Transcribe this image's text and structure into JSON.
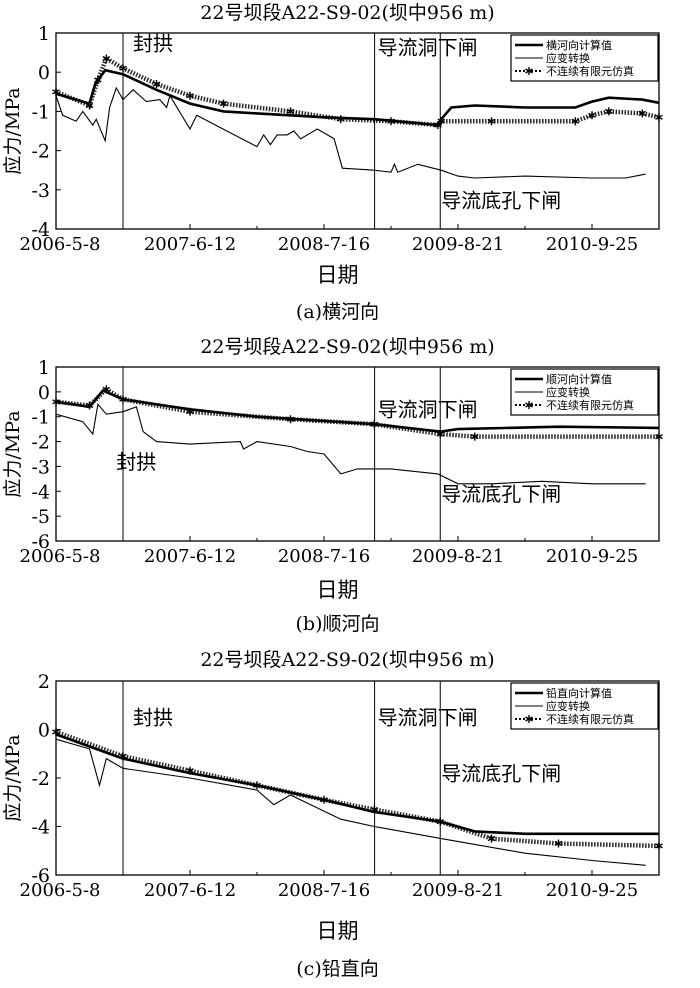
{
  "chart_data": [
    {
      "type": "line",
      "title": "22号坝段A22-S9-02(坝中956 m)",
      "caption": "(a)横河向",
      "xlabel": "日期",
      "ylabel": "应力/MPa",
      "x_unit": "days since 2006-5-8",
      "xlim": [
        0,
        1800
      ],
      "ylim": [
        -4,
        1
      ],
      "yticks": [
        1,
        0,
        -1,
        -2,
        -3,
        -4
      ],
      "xticks": [
        {
          "x": 0,
          "label": "2006-5-8"
        },
        {
          "x": 400,
          "label": "2007-6-12"
        },
        {
          "x": 800,
          "label": "2008-7-16"
        },
        {
          "x": 1200,
          "label": "2009-8-21"
        },
        {
          "x": 1600,
          "label": "2010-9-25"
        }
      ],
      "legend": [
        "横河向计算值",
        "应变转换",
        "不连续有限元仿真"
      ],
      "legend_position": "top-right",
      "events": [
        {
          "x": 200,
          "label": "封拱",
          "tx": 230,
          "ty": 0.55
        },
        {
          "x": 951,
          "label": "导流洞下闸",
          "tx": 960,
          "ty": 0.45
        },
        {
          "x": 1147,
          "label": "导流底孔下闸",
          "tx": 1150,
          "ty": -3.45
        }
      ],
      "series": [
        {
          "name": "横河向计算值",
          "style": "thick",
          "points": [
            [
              0,
              -0.55
            ],
            [
              100,
              -0.8
            ],
            [
              117,
              -0.3
            ],
            [
              147,
              0.05
            ],
            [
              200,
              -0.05
            ],
            [
              300,
              -0.45
            ],
            [
              400,
              -0.8
            ],
            [
              500,
              -1.0
            ],
            [
              600,
              -1.05
            ],
            [
              700,
              -1.1
            ],
            [
              800,
              -1.15
            ],
            [
              950,
              -1.2
            ],
            [
              1140,
              -1.35
            ],
            [
              1150,
              -1.2
            ],
            [
              1180,
              -0.9
            ],
            [
              1250,
              -0.85
            ],
            [
              1400,
              -0.9
            ],
            [
              1550,
              -0.9
            ],
            [
              1600,
              -0.75
            ],
            [
              1650,
              -0.65
            ],
            [
              1750,
              -0.7
            ],
            [
              1800,
              -0.78
            ]
          ]
        },
        {
          "name": "应变转换",
          "style": "thin",
          "points": [
            [
              0,
              -0.6
            ],
            [
              20,
              -1.1
            ],
            [
              60,
              -1.25
            ],
            [
              80,
              -1.0
            ],
            [
              110,
              -1.35
            ],
            [
              120,
              -1.2
            ],
            [
              147,
              -1.75
            ],
            [
              160,
              -0.9
            ],
            [
              180,
              -0.4
            ],
            [
              200,
              -0.7
            ],
            [
              230,
              -0.45
            ],
            [
              270,
              -0.75
            ],
            [
              310,
              -0.7
            ],
            [
              330,
              -0.9
            ],
            [
              340,
              -0.6
            ],
            [
              400,
              -1.45
            ],
            [
              420,
              -1.1
            ],
            [
              600,
              -1.9
            ],
            [
              620,
              -1.6
            ],
            [
              640,
              -1.85
            ],
            [
              660,
              -1.6
            ],
            [
              690,
              -1.6
            ],
            [
              710,
              -1.5
            ],
            [
              730,
              -1.7
            ],
            [
              780,
              -1.45
            ],
            [
              830,
              -1.7
            ],
            [
              855,
              -2.45
            ],
            [
              950,
              -2.5
            ],
            [
              1000,
              -2.55
            ],
            [
              1010,
              -2.35
            ],
            [
              1020,
              -2.55
            ],
            [
              1080,
              -2.35
            ],
            [
              1150,
              -2.5
            ],
            [
              1200,
              -2.65
            ],
            [
              1250,
              -2.7
            ],
            [
              1400,
              -2.65
            ],
            [
              1600,
              -2.7
            ],
            [
              1700,
              -2.7
            ],
            [
              1760,
              -2.6
            ]
          ]
        },
        {
          "name": "不连续有限元仿真",
          "style": "star",
          "points": [
            [
              0,
              -0.5
            ],
            [
              100,
              -0.85
            ],
            [
              125,
              -0.2
            ],
            [
              150,
              0.35
            ],
            [
              200,
              0.1
            ],
            [
              300,
              -0.3
            ],
            [
              400,
              -0.6
            ],
            [
              500,
              -0.8
            ],
            [
              700,
              -1.0
            ],
            [
              850,
              -1.2
            ],
            [
              1000,
              -1.25
            ],
            [
              1140,
              -1.35
            ],
            [
              1150,
              -1.25
            ],
            [
              1300,
              -1.25
            ],
            [
              1550,
              -1.25
            ],
            [
              1600,
              -1.1
            ],
            [
              1650,
              -1.0
            ],
            [
              1750,
              -1.05
            ],
            [
              1800,
              -1.15
            ]
          ]
        }
      ]
    },
    {
      "type": "line",
      "title": "22号坝段A22-S9-02(坝中956 m)",
      "caption": "(b)顺河向",
      "xlabel": "日期",
      "ylabel": "应力/MPa",
      "x_unit": "days since 2006-5-8",
      "xlim": [
        0,
        1800
      ],
      "ylim": [
        -6,
        1
      ],
      "yticks": [
        1,
        0,
        -1,
        -2,
        -3,
        -4,
        -5,
        -6
      ],
      "xticks": [
        {
          "x": 0,
          "label": "2006-5-8"
        },
        {
          "x": 400,
          "label": "2007-6-12"
        },
        {
          "x": 800,
          "label": "2008-7-16"
        },
        {
          "x": 1200,
          "label": "2009-8-21"
        },
        {
          "x": 1600,
          "label": "2010-9-25"
        }
      ],
      "legend": [
        "顺河向计算值",
        "应变转换",
        "不连续有限元仿真"
      ],
      "legend_position": "top-right",
      "events": [
        {
          "x": 200,
          "label": "封拱",
          "tx": 180,
          "ty": -3.1
        },
        {
          "x": 951,
          "label": "导流洞下闸",
          "tx": 960,
          "ty": -1.0
        },
        {
          "x": 1147,
          "label": "导流底孔下闸",
          "tx": 1150,
          "ty": -4.4
        }
      ],
      "series": [
        {
          "name": "顺河向计算值",
          "style": "thick",
          "points": [
            [
              0,
              -0.4
            ],
            [
              100,
              -0.6
            ],
            [
              140,
              0.05
            ],
            [
              200,
              -0.3
            ],
            [
              400,
              -0.7
            ],
            [
              600,
              -1.0
            ],
            [
              950,
              -1.3
            ],
            [
              1147,
              -1.6
            ],
            [
              1200,
              -1.5
            ],
            [
              1500,
              -1.4
            ],
            [
              1800,
              -1.45
            ]
          ]
        },
        {
          "name": "应变转换",
          "style": "thin",
          "points": [
            [
              0,
              -0.9
            ],
            [
              80,
              -1.2
            ],
            [
              110,
              -1.7
            ],
            [
              125,
              -0.5
            ],
            [
              150,
              -0.9
            ],
            [
              200,
              -0.8
            ],
            [
              240,
              -0.6
            ],
            [
              260,
              -1.6
            ],
            [
              300,
              -2.0
            ],
            [
              400,
              -2.1
            ],
            [
              550,
              -2.0
            ],
            [
              560,
              -2.3
            ],
            [
              600,
              -2.0
            ],
            [
              700,
              -2.2
            ],
            [
              750,
              -2.4
            ],
            [
              800,
              -2.5
            ],
            [
              850,
              -3.3
            ],
            [
              900,
              -3.1
            ],
            [
              1000,
              -3.1
            ],
            [
              1140,
              -3.3
            ],
            [
              1200,
              -3.7
            ],
            [
              1300,
              -3.7
            ],
            [
              1450,
              -3.6
            ],
            [
              1600,
              -3.7
            ],
            [
              1760,
              -3.7
            ]
          ]
        },
        {
          "name": "不连续有限元仿真",
          "style": "star",
          "points": [
            [
              0,
              -0.4
            ],
            [
              100,
              -0.55
            ],
            [
              150,
              0.1
            ],
            [
              200,
              -0.3
            ],
            [
              400,
              -0.8
            ],
            [
              700,
              -1.1
            ],
            [
              950,
              -1.3
            ],
            [
              1147,
              -1.7
            ],
            [
              1250,
              -1.8
            ],
            [
              1800,
              -1.8
            ]
          ]
        }
      ]
    },
    {
      "type": "line",
      "title": "22号坝段A22-S9-02(坝中956 m)",
      "caption": "(c)铅直向",
      "xlabel": "日期",
      "ylabel": "应力/MPa",
      "x_unit": "days since 2006-5-8",
      "xlim": [
        0,
        1800
      ],
      "ylim": [
        -6,
        2
      ],
      "yticks": [
        2,
        0,
        -2,
        -4,
        -6
      ],
      "xticks": [
        {
          "x": 0,
          "label": "2006-5-8"
        },
        {
          "x": 400,
          "label": "2007-6-12"
        },
        {
          "x": 800,
          "label": "2008-7-16"
        },
        {
          "x": 1200,
          "label": "2009-8-21"
        },
        {
          "x": 1600,
          "label": "2010-9-25"
        }
      ],
      "legend": [
        "铅直向计算值",
        "应变转换",
        "不连续有限元仿真"
      ],
      "legend_position": "top-right",
      "events": [
        {
          "x": 200,
          "label": "封拱",
          "tx": 230,
          "ty": 0.2
        },
        {
          "x": 951,
          "label": "导流洞下闸",
          "tx": 960,
          "ty": 0.2
        },
        {
          "x": 1147,
          "label": "导流底孔下闸",
          "tx": 1150,
          "ty": -2.1
        }
      ],
      "series": [
        {
          "name": "铅直向计算值",
          "style": "thick",
          "points": [
            [
              0,
              -0.2
            ],
            [
              200,
              -1.2
            ],
            [
              400,
              -1.8
            ],
            [
              600,
              -2.3
            ],
            [
              800,
              -2.9
            ],
            [
              950,
              -3.4
            ],
            [
              1147,
              -3.8
            ],
            [
              1250,
              -4.2
            ],
            [
              1400,
              -4.3
            ],
            [
              1800,
              -4.3
            ]
          ]
        },
        {
          "name": "应变转换",
          "style": "thin",
          "points": [
            [
              0,
              -0.4
            ],
            [
              100,
              -0.8
            ],
            [
              130,
              -2.3
            ],
            [
              150,
              -1.2
            ],
            [
              200,
              -1.6
            ],
            [
              400,
              -2.0
            ],
            [
              600,
              -2.5
            ],
            [
              650,
              -3.1
            ],
            [
              700,
              -2.7
            ],
            [
              850,
              -3.7
            ],
            [
              950,
              -4.0
            ],
            [
              1150,
              -4.5
            ],
            [
              1400,
              -5.1
            ],
            [
              1600,
              -5.4
            ],
            [
              1760,
              -5.6
            ]
          ]
        },
        {
          "name": "不连续有限元仿真",
          "style": "star",
          "points": [
            [
              0,
              -0.1
            ],
            [
              200,
              -1.1
            ],
            [
              400,
              -1.7
            ],
            [
              600,
              -2.3
            ],
            [
              800,
              -2.9
            ],
            [
              950,
              -3.3
            ],
            [
              1147,
              -3.8
            ],
            [
              1300,
              -4.5
            ],
            [
              1500,
              -4.7
            ],
            [
              1800,
              -4.8
            ]
          ]
        }
      ]
    }
  ]
}
